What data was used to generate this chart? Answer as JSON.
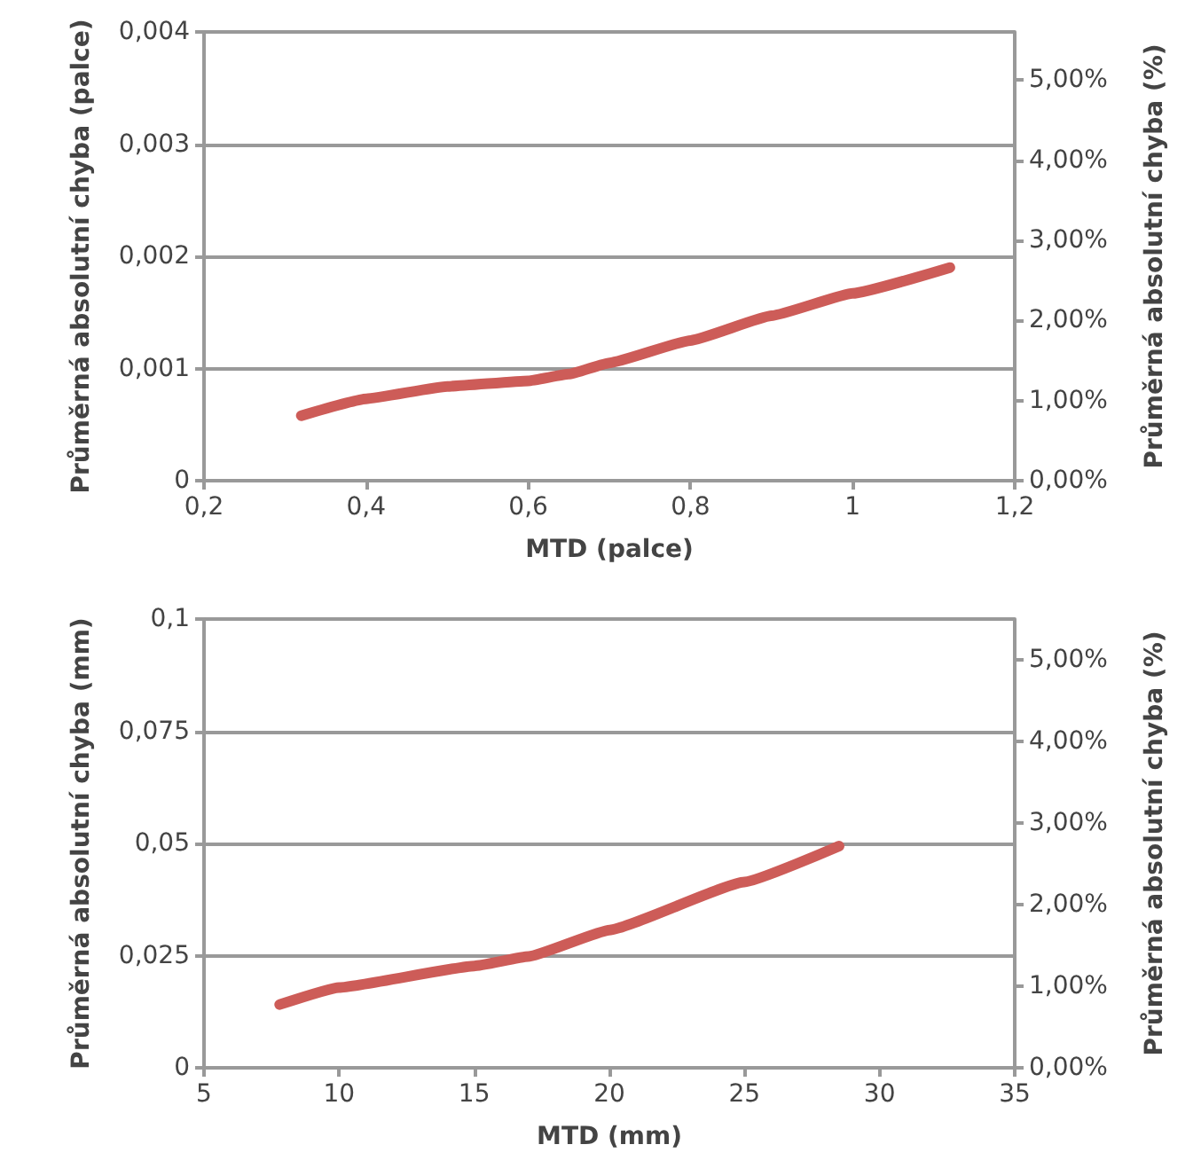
{
  "chart_data": [
    {
      "type": "line",
      "xlabel": "MTD (palce)",
      "ylabel": "Průměrná absolutní chyba (palce)",
      "y2label": "Průměrná absolutní chyba (%)",
      "grid": "y",
      "marker": "none",
      "line_style": "solid",
      "xlim": [
        0.2,
        1.2
      ],
      "xticks": [
        {
          "value": 0.2,
          "label": "0,2"
        },
        {
          "value": 0.4,
          "label": "0,4"
        },
        {
          "value": 0.6,
          "label": "0,6"
        },
        {
          "value": 0.8,
          "label": "0,8"
        },
        {
          "value": 1,
          "label": "1"
        },
        {
          "value": 1.2,
          "label": "1,2"
        }
      ],
      "ylim": [
        0,
        0.004
      ],
      "yticks": [
        {
          "value": 0,
          "label": "0"
        },
        {
          "value": 0.001,
          "label": "0,001"
        },
        {
          "value": 0.002,
          "label": "0,002"
        },
        {
          "value": 0.003,
          "label": "0,003"
        },
        {
          "value": 0.004,
          "label": "0,004"
        }
      ],
      "y2lim": [
        0,
        5.6
      ],
      "y2ticks": [
        {
          "value": 0,
          "label": "0,00%"
        },
        {
          "value": 1,
          "label": "1,00%"
        },
        {
          "value": 2,
          "label": "2,00%"
        },
        {
          "value": 3,
          "label": "3,00%"
        },
        {
          "value": 4,
          "label": "4,00%"
        },
        {
          "value": 5,
          "label": "5,00%"
        }
      ],
      "series": [
        {
          "color": "#cd5c58",
          "x": [
            0.32,
            0.4,
            0.5,
            0.6,
            0.65,
            0.7,
            0.8,
            0.9,
            1.0,
            1.12
          ],
          "values": [
            0.00058,
            0.00073,
            0.00084,
            0.00089,
            0.00095,
            0.00105,
            0.00125,
            0.00147,
            0.00167,
            0.0019
          ]
        }
      ]
    },
    {
      "type": "line",
      "xlabel": "MTD (mm)",
      "ylabel": "Průměrná absolutní chyba (mm)",
      "y2label": "Průměrná absolutní chyba (%)",
      "grid": "y",
      "marker": "none",
      "line_style": "solid",
      "xlim": [
        5,
        35
      ],
      "xticks": [
        5,
        10,
        15,
        20,
        25,
        30,
        35
      ],
      "ylim": [
        0,
        0.1
      ],
      "yticks": [
        {
          "value": 0,
          "label": "0"
        },
        {
          "value": 0.025,
          "label": "0,025"
        },
        {
          "value": 0.05,
          "label": "0,05"
        },
        {
          "value": 0.075,
          "label": "0,075"
        },
        {
          "value": 0.1,
          "label": "0,1"
        }
      ],
      "y2lim": [
        0,
        5.5
      ],
      "y2ticks": [
        {
          "value": 0,
          "label": "0,00%"
        },
        {
          "value": 1,
          "label": "1,00%"
        },
        {
          "value": 2,
          "label": "2,00%"
        },
        {
          "value": 3,
          "label": "3,00%"
        },
        {
          "value": 4,
          "label": "4,00%"
        },
        {
          "value": 5,
          "label": "5,00%"
        }
      ],
      "series": [
        {
          "color": "#cd5c58",
          "x": [
            7.8,
            10,
            15,
            17,
            20,
            25,
            28.5
          ],
          "values": [
            0.0141,
            0.0179,
            0.0227,
            0.0248,
            0.0307,
            0.0414,
            0.0494
          ]
        }
      ]
    }
  ]
}
